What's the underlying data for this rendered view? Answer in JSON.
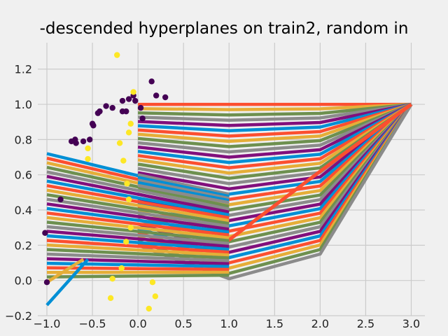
{
  "chart_data": {
    "type": "scatter",
    "title": "-descended hyperplanes on train2, random in",
    "xlabel": "",
    "ylabel": "",
    "xlim": [
      -1.1,
      3.15
    ],
    "ylim": [
      -0.2,
      1.35
    ],
    "x_ticks": [
      -1.0,
      -0.5,
      0.0,
      0.5,
      1.0,
      1.5,
      2.0,
      2.5,
      3.0
    ],
    "x_tick_labels": [
      "−1.0",
      "−0.5",
      "0.0",
      "0.5",
      "1.0",
      "1.5",
      "2.0",
      "2.5",
      "3.0"
    ],
    "y_ticks": [
      -0.2,
      0.0,
      0.2,
      0.4,
      0.6,
      0.8,
      1.0,
      1.2
    ],
    "y_tick_labels": [
      "−0.2",
      "0.0",
      "0.2",
      "0.4",
      "0.6",
      "0.8",
      "1.0",
      "1.2"
    ],
    "grid": true,
    "background": "#f0f0f0",
    "grid_color": "#cbcbcb",
    "series": [
      {
        "color": "#440154",
        "points": [
          [
            -1.0,
            -0.01
          ],
          [
            -1.02,
            0.27
          ],
          [
            -0.85,
            0.46
          ],
          [
            -0.73,
            0.79
          ],
          [
            -0.69,
            0.8
          ],
          [
            -0.68,
            0.78
          ],
          [
            -0.6,
            0.79
          ],
          [
            -0.53,
            0.8
          ],
          [
            -0.5,
            0.89
          ],
          [
            -0.49,
            0.88
          ],
          [
            -0.44,
            0.95
          ],
          [
            -0.42,
            0.96
          ],
          [
            -0.35,
            0.99
          ],
          [
            -0.28,
            0.98
          ],
          [
            -0.17,
            1.02
          ],
          [
            -0.17,
            0.96
          ],
          [
            -0.13,
            0.96
          ],
          [
            -0.1,
            1.03
          ],
          [
            -0.05,
            1.05
          ],
          [
            -0.03,
            1.02
          ],
          [
            0.03,
            0.98
          ],
          [
            0.05,
            0.92
          ],
          [
            0.15,
            1.13
          ],
          [
            0.2,
            1.05
          ],
          [
            0.3,
            1.04
          ]
        ]
      },
      {
        "color": "#fde725",
        "points": [
          [
            -0.23,
            1.28
          ],
          [
            -0.05,
            1.07
          ],
          [
            -0.08,
            0.89
          ],
          [
            -0.2,
            0.78
          ],
          [
            -0.1,
            0.84
          ],
          [
            -0.55,
            0.75
          ],
          [
            -0.55,
            0.69
          ],
          [
            -0.16,
            0.68
          ],
          [
            -0.12,
            0.55
          ],
          [
            -0.1,
            0.46
          ],
          [
            -0.08,
            0.3
          ],
          [
            -0.13,
            0.22
          ],
          [
            -0.18,
            0.07
          ],
          [
            -0.28,
            0.01
          ],
          [
            -0.3,
            -0.1
          ],
          [
            0.16,
            -0.01
          ],
          [
            0.19,
            -0.09
          ],
          [
            0.12,
            -0.16
          ]
        ]
      }
    ],
    "hyperplane_color_cycle": [
      "#008fd5",
      "#fc4f30",
      "#e5ae38",
      "#6d904f",
      "#8b8b8b",
      "#810f7c"
    ]
  }
}
